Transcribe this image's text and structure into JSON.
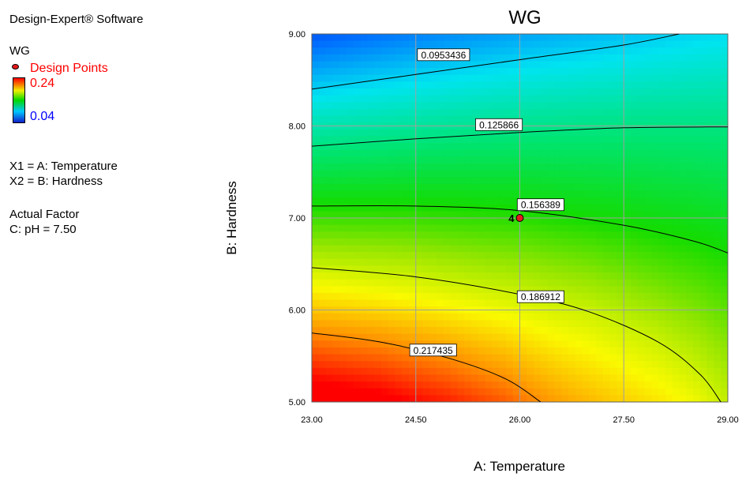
{
  "legend": {
    "software": "Design-Expert® Software",
    "response": "WG",
    "design_points_label": "Design Points",
    "color_max": "0.24",
    "color_min": "0.04",
    "x1": "X1 = A: Temperature",
    "x2": "X2 = B: Hardness",
    "actual_factor_title": "Actual Factor",
    "actual_factor_value": "C: pH = 7.50",
    "colors": {
      "high": "#ff0000",
      "low": "#0000ff"
    }
  },
  "chart_data": {
    "type": "heatmap",
    "subtype": "contour",
    "title": "WG",
    "xlabel": "A: Temperature",
    "ylabel": "B: Hardness",
    "xlim": [
      23,
      29
    ],
    "ylim": [
      5,
      9
    ],
    "x_ticks": [
      "23.00",
      "24.50",
      "26.00",
      "27.50",
      "29.00"
    ],
    "y_ticks": [
      "5.00",
      "6.00",
      "7.00",
      "8.00",
      "9.00"
    ],
    "grid": true,
    "color_range": [
      0.04,
      0.24
    ],
    "contours": [
      {
        "level": 0.0953436,
        "label": "0.0953436",
        "label_at": [
          24.9,
          8.77
        ],
        "points": [
          [
            23.0,
            8.4
          ],
          [
            24.5,
            8.56
          ],
          [
            26.0,
            8.72
          ],
          [
            27.5,
            8.88
          ],
          [
            28.3,
            9.0
          ]
        ]
      },
      {
        "level": 0.125866,
        "label": "0.125866",
        "label_at": [
          25.7,
          8.01
        ],
        "points": [
          [
            23.0,
            7.78
          ],
          [
            24.5,
            7.86
          ],
          [
            26.0,
            7.93
          ],
          [
            27.5,
            7.98
          ],
          [
            29.0,
            7.99
          ]
        ]
      },
      {
        "level": 0.156389,
        "label": "0.156389",
        "label_at": [
          26.3,
          7.14
        ],
        "points": [
          [
            23.0,
            7.13
          ],
          [
            24.5,
            7.13
          ],
          [
            26.0,
            7.08
          ],
          [
            27.5,
            6.92
          ],
          [
            28.5,
            6.75
          ],
          [
            29.0,
            6.62
          ]
        ]
      },
      {
        "level": 0.186912,
        "label": "0.186912",
        "label_at": [
          26.3,
          6.14
        ],
        "points": [
          [
            23.0,
            6.46
          ],
          [
            24.5,
            6.36
          ],
          [
            26.0,
            6.17
          ],
          [
            27.0,
            5.98
          ],
          [
            28.0,
            5.65
          ],
          [
            28.6,
            5.3
          ],
          [
            28.9,
            5.0
          ]
        ]
      },
      {
        "level": 0.217435,
        "label": "0.217435",
        "label_at": [
          24.75,
          5.56
        ],
        "points": [
          [
            23.0,
            5.75
          ],
          [
            24.0,
            5.65
          ],
          [
            25.0,
            5.47
          ],
          [
            25.8,
            5.25
          ],
          [
            26.3,
            5.0
          ]
        ]
      }
    ],
    "design_points": [
      {
        "x": 26.0,
        "y": 7.0,
        "count": "4"
      }
    ]
  }
}
